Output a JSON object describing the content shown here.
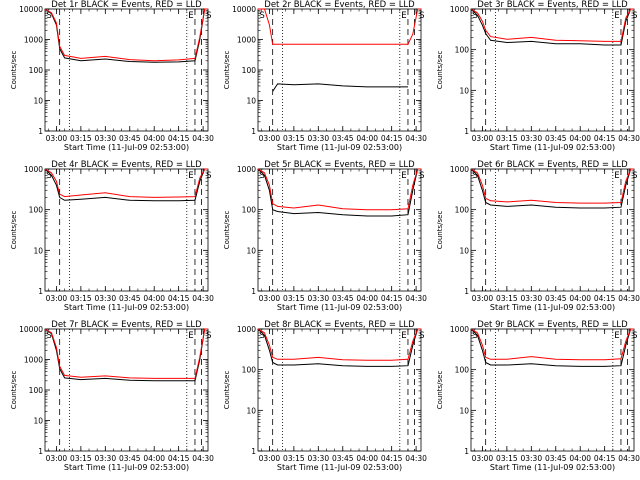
{
  "chart_data": [
    {
      "type": "line",
      "title": "Det 1r BLACK = Events, RED = LLD",
      "xlabel": "Start Time (11-Jul-09 02:53:00)",
      "ylabel": "Counts/sec",
      "yscale": "log",
      "ylim": [
        1,
        10000
      ],
      "yticks": [
        "1",
        "10",
        "100",
        "1000",
        "10000"
      ],
      "xlim": [
        "02:53",
        "04:33"
      ],
      "xticks": [
        "03:00",
        "03:15",
        "03:30",
        "03:45",
        "04:00",
        "04:15",
        "04:30"
      ],
      "markers": [
        {
          "label": "S",
          "t": "02:53"
        },
        {
          "label": "E",
          "t": "04:20"
        },
        {
          "label": "S",
          "t": "04:31"
        }
      ],
      "dashed_lines": [
        "03:02",
        "04:25",
        "04:29"
      ],
      "dotted_lines": [
        "03:08",
        "04:20"
      ],
      "series": [
        {
          "color": "#000000",
          "x": [
            "02:53",
            "02:57",
            "03:00",
            "03:02",
            "03:05",
            "03:15",
            "03:30",
            "03:45",
            "04:00",
            "04:15",
            "04:25",
            "04:28",
            "04:31",
            "04:33"
          ],
          "y": [
            10000,
            7000,
            3000,
            500,
            250,
            200,
            230,
            190,
            180,
            185,
            200,
            1000,
            10000,
            10000
          ]
        },
        {
          "color": "#ff0000",
          "x": [
            "02:53",
            "02:57",
            "03:00",
            "03:02",
            "03:05",
            "03:15",
            "03:30",
            "03:45",
            "04:00",
            "04:15",
            "04:25",
            "04:28",
            "04:31",
            "04:33"
          ],
          "y": [
            10000,
            7500,
            3500,
            600,
            300,
            240,
            280,
            220,
            200,
            215,
            240,
            1200,
            10000,
            10000
          ]
        }
      ]
    },
    {
      "type": "line",
      "title": "Det 2r BLACK = Events, RED = LLD",
      "xlabel": "Start Time (11-Jul-09 02:53:00)",
      "ylabel": "Counts/sec",
      "yscale": "log",
      "ylim": [
        1,
        10000
      ],
      "yticks": [
        "1",
        "10",
        "100",
        "1000",
        "10000"
      ],
      "xlim": [
        "02:53",
        "04:33"
      ],
      "xticks": [
        "03:00",
        "03:15",
        "03:30",
        "03:45",
        "04:00",
        "04:15",
        "04:30"
      ],
      "markers": [
        {
          "label": "S",
          "t": "02:53"
        },
        {
          "label": "E",
          "t": "04:20"
        },
        {
          "label": "S",
          "t": "04:31"
        }
      ],
      "dashed_lines": [
        "03:02",
        "04:25",
        "04:29"
      ],
      "dotted_lines": [
        "03:08",
        "04:20"
      ],
      "series": [
        {
          "color": "#000000",
          "x": [
            "03:02",
            "03:05",
            "03:15",
            "03:30",
            "03:45",
            "04:00",
            "04:15",
            "04:25"
          ],
          "y": [
            20,
            35,
            33,
            35,
            30,
            28,
            28,
            28
          ]
        },
        {
          "color": "#ff0000",
          "x": [
            "02:53",
            "02:57",
            "03:00",
            "03:02",
            "03:15",
            "03:30",
            "03:45",
            "04:00",
            "04:15",
            "04:25",
            "04:28",
            "04:31",
            "04:33"
          ],
          "y": [
            10000,
            10000,
            3000,
            700,
            700,
            700,
            700,
            700,
            700,
            700,
            1500,
            10000,
            10000
          ]
        }
      ]
    },
    {
      "type": "line",
      "title": "Det 3r BLACK = Events, RED = LLD",
      "xlabel": "Start Time (11-Jul-09 02:53:00)",
      "ylabel": "Counts/sec",
      "yscale": "log",
      "ylim": [
        1,
        1000
      ],
      "yticks": [
        "1",
        "10",
        "100",
        "1000"
      ],
      "xlim": [
        "02:53",
        "04:33"
      ],
      "xticks": [
        "03:00",
        "03:15",
        "03:30",
        "03:45",
        "04:00",
        "04:15",
        "04:30"
      ],
      "markers": [
        {
          "label": "S",
          "t": "02:53"
        },
        {
          "label": "E",
          "t": "04:20"
        },
        {
          "label": "S",
          "t": "04:31"
        }
      ],
      "dashed_lines": [
        "03:02",
        "04:25",
        "04:29"
      ],
      "dotted_lines": [
        "03:08",
        "04:20"
      ],
      "series": [
        {
          "color": "#000000",
          "x": [
            "02:53",
            "02:57",
            "03:00",
            "03:02",
            "03:05",
            "03:15",
            "03:30",
            "03:45",
            "04:00",
            "04:15",
            "04:25",
            "04:28",
            "04:31",
            "04:33"
          ],
          "y": [
            1000,
            700,
            400,
            250,
            170,
            150,
            160,
            140,
            140,
            130,
            130,
            500,
            1000,
            1000
          ]
        },
        {
          "color": "#ff0000",
          "x": [
            "02:53",
            "02:57",
            "03:00",
            "03:02",
            "03:05",
            "03:15",
            "03:30",
            "03:45",
            "04:00",
            "04:15",
            "04:25",
            "04:28",
            "04:31",
            "04:33"
          ],
          "y": [
            1000,
            800,
            500,
            300,
            210,
            180,
            200,
            170,
            165,
            160,
            160,
            600,
            1000,
            1000
          ]
        }
      ]
    },
    {
      "type": "line",
      "title": "Det 4r BLACK = Events, RED = LLD",
      "xlabel": "Start Time (11-Jul-09 02:53:00)",
      "ylabel": "Counts/sec",
      "yscale": "log",
      "ylim": [
        1,
        1000
      ],
      "yticks": [
        "1",
        "10",
        "100",
        "1000"
      ],
      "xlim": [
        "02:53",
        "04:33"
      ],
      "xticks": [
        "03:00",
        "03:15",
        "03:30",
        "03:45",
        "04:00",
        "04:15",
        "04:30"
      ],
      "markers": [
        {
          "label": "S",
          "t": "02:53"
        },
        {
          "label": "E",
          "t": "04:20"
        },
        {
          "label": "S",
          "t": "04:31"
        }
      ],
      "dashed_lines": [
        "03:02",
        "04:25",
        "04:29"
      ],
      "dotted_lines": [
        "03:08",
        "04:20"
      ],
      "series": [
        {
          "color": "#000000",
          "x": [
            "02:53",
            "02:57",
            "03:00",
            "03:02",
            "03:05",
            "03:15",
            "03:30",
            "03:45",
            "04:00",
            "04:15",
            "04:25",
            "04:28",
            "04:31",
            "04:33"
          ],
          "y": [
            1000,
            700,
            400,
            200,
            170,
            180,
            200,
            170,
            165,
            165,
            170,
            500,
            1000,
            1000
          ]
        },
        {
          "color": "#ff0000",
          "x": [
            "02:53",
            "02:57",
            "03:00",
            "03:02",
            "03:05",
            "03:15",
            "03:30",
            "03:45",
            "04:00",
            "04:15",
            "04:25",
            "04:28",
            "04:31",
            "04:33"
          ],
          "y": [
            1000,
            800,
            500,
            240,
            210,
            230,
            260,
            210,
            200,
            205,
            210,
            600,
            1000,
            1000
          ]
        }
      ]
    },
    {
      "type": "line",
      "title": "Det 5r BLACK = Events, RED = LLD",
      "xlabel": "Start Time (11-Jul-09 02:53:00)",
      "ylabel": "Counts/sec",
      "yscale": "log",
      "ylim": [
        1,
        1000
      ],
      "yticks": [
        "1",
        "10",
        "100",
        "1000"
      ],
      "xlim": [
        "02:53",
        "04:33"
      ],
      "xticks": [
        "03:00",
        "03:15",
        "03:30",
        "03:45",
        "04:00",
        "04:15",
        "04:30"
      ],
      "markers": [
        {
          "label": "S",
          "t": "02:53"
        },
        {
          "label": "E",
          "t": "04:20"
        },
        {
          "label": "S",
          "t": "04:31"
        }
      ],
      "dashed_lines": [
        "03:02",
        "04:25",
        "04:29"
      ],
      "dotted_lines": [
        "03:08",
        "04:20"
      ],
      "series": [
        {
          "color": "#000000",
          "x": [
            "02:53",
            "02:57",
            "03:00",
            "03:02",
            "03:05",
            "03:15",
            "03:30",
            "03:45",
            "04:00",
            "04:15",
            "04:25",
            "04:28",
            "04:31",
            "04:33"
          ],
          "y": [
            1000,
            700,
            300,
            100,
            90,
            80,
            85,
            75,
            70,
            70,
            75,
            300,
            1000,
            1000
          ]
        },
        {
          "color": "#ff0000",
          "x": [
            "02:53",
            "02:57",
            "03:00",
            "03:02",
            "03:05",
            "03:15",
            "03:30",
            "03:45",
            "04:00",
            "04:15",
            "04:25",
            "04:28",
            "04:31",
            "04:33"
          ],
          "y": [
            1000,
            800,
            400,
            140,
            120,
            110,
            130,
            105,
            100,
            100,
            105,
            400,
            1000,
            1000
          ]
        }
      ]
    },
    {
      "type": "line",
      "title": "Det 6r BLACK = Events, RED = LLD",
      "xlabel": "Start Time (11-Jul-09 02:53:00)",
      "ylabel": "Counts/sec",
      "yscale": "log",
      "ylim": [
        1,
        1000
      ],
      "yticks": [
        "1",
        "10",
        "100",
        "1000"
      ],
      "xlim": [
        "02:53",
        "04:33"
      ],
      "xticks": [
        "03:00",
        "03:15",
        "03:30",
        "03:45",
        "04:00",
        "04:15",
        "04:30"
      ],
      "markers": [
        {
          "label": "S",
          "t": "02:53"
        },
        {
          "label": "E",
          "t": "04:20"
        },
        {
          "label": "S",
          "t": "04:31"
        }
      ],
      "dashed_lines": [
        "03:02",
        "04:25",
        "04:29"
      ],
      "dotted_lines": [
        "03:08",
        "04:20"
      ],
      "series": [
        {
          "color": "#000000",
          "x": [
            "02:53",
            "02:57",
            "03:00",
            "03:02",
            "03:05",
            "03:15",
            "03:30",
            "03:45",
            "04:00",
            "04:15",
            "04:25",
            "04:28",
            "04:31",
            "04:33"
          ],
          "y": [
            1000,
            700,
            300,
            150,
            130,
            120,
            130,
            115,
            110,
            110,
            115,
            400,
            1000,
            1000
          ]
        },
        {
          "color": "#ff0000",
          "x": [
            "02:53",
            "02:57",
            "03:00",
            "03:02",
            "03:05",
            "03:15",
            "03:30",
            "03:45",
            "04:00",
            "04:15",
            "04:25",
            "04:28",
            "04:31",
            "04:33"
          ],
          "y": [
            1000,
            800,
            400,
            190,
            165,
            155,
            170,
            150,
            145,
            145,
            150,
            500,
            1000,
            1000
          ]
        }
      ]
    },
    {
      "type": "line",
      "title": "Det 7r BLACK = Events, RED = LLD",
      "xlabel": "Start Time (11-Jul-09 02:53:00)",
      "ylabel": "Counts/sec",
      "yscale": "log",
      "ylim": [
        1,
        10000
      ],
      "yticks": [
        "1",
        "10",
        "100",
        "1000",
        "10000"
      ],
      "xlim": [
        "02:53",
        "04:33"
      ],
      "xticks": [
        "03:00",
        "03:15",
        "03:30",
        "03:45",
        "04:00",
        "04:15",
        "04:30"
      ],
      "markers": [
        {
          "label": "S",
          "t": "02:53"
        },
        {
          "label": "E",
          "t": "04:20"
        },
        {
          "label": "S",
          "t": "04:31"
        }
      ],
      "dashed_lines": [
        "03:02",
        "04:25",
        "04:29"
      ],
      "dotted_lines": [
        "03:08",
        "04:20"
      ],
      "series": [
        {
          "color": "#000000",
          "x": [
            "02:53",
            "02:57",
            "03:00",
            "03:02",
            "03:05",
            "03:15",
            "03:30",
            "03:45",
            "04:00",
            "04:15",
            "04:25",
            "04:28",
            "04:31",
            "04:33"
          ],
          "y": [
            10000,
            7000,
            2000,
            500,
            250,
            220,
            240,
            210,
            200,
            200,
            200,
            1000,
            10000,
            10000
          ]
        },
        {
          "color": "#ff0000",
          "x": [
            "02:53",
            "02:57",
            "03:00",
            "03:02",
            "03:05",
            "03:15",
            "03:30",
            "03:45",
            "04:00",
            "04:15",
            "04:25",
            "04:28",
            "04:31",
            "04:33"
          ],
          "y": [
            10000,
            7500,
            2500,
            600,
            300,
            260,
            290,
            250,
            240,
            240,
            240,
            1200,
            10000,
            10000
          ]
        }
      ]
    },
    {
      "type": "line",
      "title": "Det 8r BLACK = Events, RED = LLD",
      "xlabel": "Start Time (11-Jul-09 02:53:00)",
      "ylabel": "Counts/sec",
      "yscale": "log",
      "ylim": [
        1,
        1000
      ],
      "yticks": [
        "1",
        "10",
        "100",
        "1000"
      ],
      "xlim": [
        "02:53",
        "04:33"
      ],
      "xticks": [
        "03:00",
        "03:15",
        "03:30",
        "03:45",
        "04:00",
        "04:15",
        "04:30"
      ],
      "markers": [
        {
          "label": "S",
          "t": "02:53"
        },
        {
          "label": "E",
          "t": "04:20"
        },
        {
          "label": "S",
          "t": "04:31"
        }
      ],
      "dashed_lines": [
        "03:02",
        "04:25",
        "04:29"
      ],
      "dotted_lines": [
        "03:08",
        "04:20"
      ],
      "series": [
        {
          "color": "#000000",
          "x": [
            "02:53",
            "02:57",
            "03:00",
            "03:02",
            "03:05",
            "03:15",
            "03:30",
            "03:45",
            "04:00",
            "04:15",
            "04:25",
            "04:28",
            "04:31",
            "04:33"
          ],
          "y": [
            1000,
            700,
            300,
            150,
            130,
            130,
            140,
            125,
            120,
            120,
            125,
            400,
            1000,
            1000
          ]
        },
        {
          "color": "#ff0000",
          "x": [
            "02:53",
            "02:57",
            "03:00",
            "03:02",
            "03:05",
            "03:15",
            "03:30",
            "03:45",
            "04:00",
            "04:15",
            "04:25",
            "04:28",
            "04:31",
            "04:33"
          ],
          "y": [
            1000,
            800,
            400,
            200,
            180,
            180,
            200,
            175,
            170,
            170,
            180,
            500,
            1000,
            1000
          ]
        }
      ]
    },
    {
      "type": "line",
      "title": "Det 9r BLACK = Events, RED = LLD",
      "xlabel": "Start Time (11-Jul-09 02:53:00)",
      "ylabel": "Counts/sec",
      "yscale": "log",
      "ylim": [
        1,
        1000
      ],
      "yticks": [
        "1",
        "10",
        "100",
        "1000"
      ],
      "xlim": [
        "02:53",
        "04:33"
      ],
      "xticks": [
        "03:00",
        "03:15",
        "03:30",
        "03:45",
        "04:00",
        "04:15",
        "04:30"
      ],
      "markers": [
        {
          "label": "S",
          "t": "02:53"
        },
        {
          "label": "E",
          "t": "04:20"
        },
        {
          "label": "S",
          "t": "04:31"
        }
      ],
      "dashed_lines": [
        "03:02",
        "04:25",
        "04:29"
      ],
      "dotted_lines": [
        "03:08",
        "04:20"
      ],
      "series": [
        {
          "color": "#000000",
          "x": [
            "02:53",
            "02:57",
            "03:00",
            "03:02",
            "03:05",
            "03:15",
            "03:30",
            "03:45",
            "04:00",
            "04:15",
            "04:25",
            "04:28",
            "04:31",
            "04:33"
          ],
          "y": [
            1000,
            700,
            300,
            150,
            130,
            130,
            140,
            125,
            120,
            120,
            125,
            400,
            1000,
            1000
          ]
        },
        {
          "color": "#ff0000",
          "x": [
            "02:53",
            "02:57",
            "03:00",
            "03:02",
            "03:05",
            "03:15",
            "03:30",
            "03:45",
            "04:00",
            "04:15",
            "04:25",
            "04:28",
            "04:31",
            "04:33"
          ],
          "y": [
            1000,
            800,
            400,
            200,
            180,
            180,
            210,
            180,
            175,
            175,
            185,
            500,
            1000,
            1000
          ]
        }
      ]
    }
  ]
}
